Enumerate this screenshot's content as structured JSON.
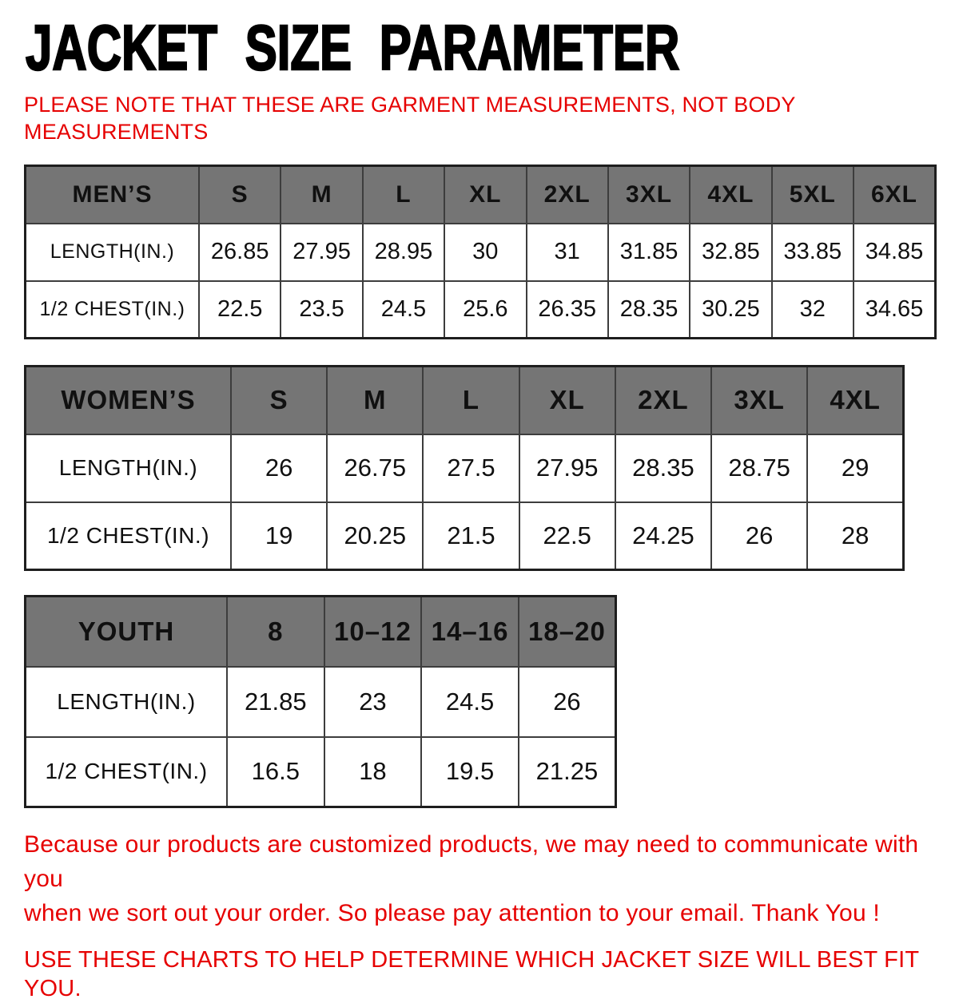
{
  "title": "JACKET SIZE PARAMETER",
  "note": {
    "lines": [
      "PLEASE NOTE THAT THESE ARE GARMENT MEASUREMENTS, NOT BODY",
      "MEASUREMENTS"
    ]
  },
  "tables": [
    {
      "name": "MEN’S",
      "sizes": [
        "S",
        "M",
        "L",
        "XL",
        "2XL",
        "3XL",
        "4XL",
        "5XL",
        "6XL"
      ],
      "rows": [
        {
          "label": "LENGTH(IN.)",
          "values": [
            "26.85",
            "27.95",
            "28.95",
            "30",
            "31",
            "31.85",
            "32.85",
            "33.85",
            "34.85"
          ]
        },
        {
          "label": "1/2 CHEST(IN.)",
          "values": [
            "22.5",
            "23.5",
            "24.5",
            "25.6",
            "26.35",
            "28.35",
            "30.25",
            "32",
            "34.65"
          ]
        }
      ]
    },
    {
      "name": "WOMEN’S",
      "sizes": [
        "S",
        "M",
        "L",
        "XL",
        "2XL",
        "3XL",
        "4XL"
      ],
      "rows": [
        {
          "label": "LENGTH(IN.)",
          "values": [
            "26",
            "26.75",
            "27.5",
            "27.95",
            "28.35",
            "28.75",
            "29"
          ]
        },
        {
          "label": "1/2 CHEST(IN.)",
          "values": [
            "19",
            "20.25",
            "21.5",
            "22.5",
            "24.25",
            "26",
            "28"
          ]
        }
      ]
    },
    {
      "name": "YOUTH",
      "sizes": [
        "8",
        "10–12",
        "14–16",
        "18–20"
      ],
      "rows": [
        {
          "label": "LENGTH(IN.)",
          "values": [
            "21.85",
            "23",
            "24.5",
            "26"
          ]
        },
        {
          "label": "1/2 CHEST(IN.)",
          "values": [
            "16.5",
            "18",
            "19.5",
            "21.25"
          ]
        }
      ]
    }
  ],
  "footer": {
    "paragraph_lines": [
      "Because our products are customized products, we may need to communicate with you",
      "when we sort out your order. So please pay attention to your email. Thank You !"
    ],
    "usage_line": "USE THESE CHARTS TO HELP DETERMINE WHICH JACKET SIZE WILL BEST FIT YOU."
  },
  "colors": {
    "accent_red": "#e60000",
    "header_gray": "#757575"
  }
}
